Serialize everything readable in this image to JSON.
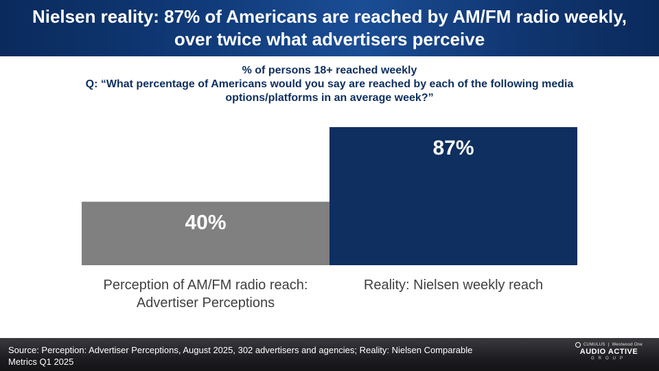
{
  "header": {
    "title": "Nielsen reality: 87% of Americans are reached by AM/FM radio weekly, over twice what advertisers perceive"
  },
  "subtitle": {
    "line1": "% of persons 18+ reached weekly",
    "question": "Q: “What percentage of Americans would you say are reached by each of the following media options/platforms in an average week?”"
  },
  "chart_data": {
    "type": "bar",
    "categories": [
      "Perception of AM/FM radio reach: Advertiser Perceptions",
      "Reality: Nielsen weekly reach"
    ],
    "values": [
      40,
      87
    ],
    "data_labels": [
      "40%",
      "87%"
    ],
    "colors": [
      "#808080",
      "#0e2f5f"
    ],
    "label_color": "#ffffff",
    "ylim": [
      0,
      100
    ],
    "grid": false,
    "title": "",
    "xlabel": "",
    "ylabel": ""
  },
  "footer": {
    "source": "Source: Perception: Advertiser Perceptions, August 2025, 302 advertisers and agencies; Reality: Nielsen Comparable Metrics Q1 2025",
    "logo_top_left": "CUMULUS",
    "logo_top_right": "Westwood One",
    "logo_brand": "AUDIO ACTIVE",
    "logo_group": "GROUP"
  }
}
